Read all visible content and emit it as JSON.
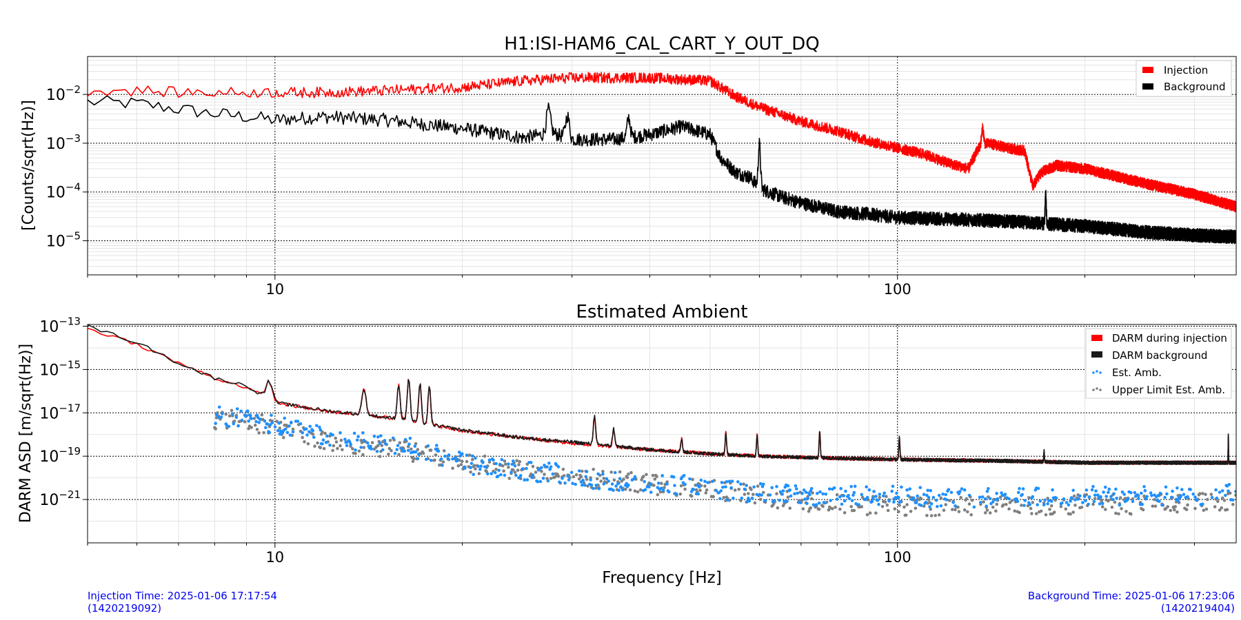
{
  "charts": [
    {
      "title": "H1:ISI-HAM6_CAL_CART_Y_OUT_DQ",
      "ylabel": "[Counts/sqrt(Hz)]",
      "xlabel": "",
      "x_tick_labels": [
        "10",
        "100"
      ],
      "y_tick_labels": [
        {
          "base": "10",
          "exp": "−2"
        },
        {
          "base": "10",
          "exp": "−3"
        },
        {
          "base": "10",
          "exp": "−4"
        },
        {
          "base": "10",
          "exp": "−5"
        }
      ],
      "legend": [
        {
          "label": "Injection",
          "kind": "patch",
          "color": "#ff0000"
        },
        {
          "label": "Background",
          "kind": "patch",
          "color": "#000000"
        }
      ]
    },
    {
      "title": "Estimated Ambient",
      "ylabel": "DARM ASD [m/sqrt(Hz)]",
      "xlabel": "Frequency [Hz]",
      "x_tick_labels": [
        "10",
        "100"
      ],
      "y_tick_labels": [
        {
          "base": "10",
          "exp": "−13"
        },
        {
          "base": "10",
          "exp": "−15"
        },
        {
          "base": "10",
          "exp": "−17"
        },
        {
          "base": "10",
          "exp": "−19"
        },
        {
          "base": "10",
          "exp": "−21"
        }
      ],
      "legend": [
        {
          "label": "DARM during injection",
          "kind": "patch",
          "color": "#ff0000"
        },
        {
          "label": "DARM background",
          "kind": "patch",
          "color": "#1a1a1a"
        },
        {
          "label": "Est. Amb.",
          "kind": "dots",
          "color": "#1e90ff"
        },
        {
          "label": "Upper Limit Est. Amb.",
          "kind": "dots",
          "color": "#808080"
        }
      ]
    }
  ],
  "footer": {
    "injection_time": "Injection Time: 2025-01-06 17:17:54",
    "injection_gps": "(1420219092)",
    "background_time": "Background Time: 2025-01-06 17:23:06",
    "background_gps": "(1420219404)"
  },
  "chart_data": [
    {
      "type": "line",
      "title": "H1:ISI-HAM6_CAL_CART_Y_OUT_DQ",
      "xlabel": "",
      "ylabel": "[Counts/sqrt(Hz)]",
      "xscale": "log",
      "yscale": "log",
      "xlim": [
        5,
        350
      ],
      "ylim": [
        2e-06,
        0.06
      ],
      "grid": true,
      "legend_position": "top-right",
      "series": [
        {
          "name": "Injection",
          "color": "#ff0000",
          "x": [
            5,
            6,
            7,
            8,
            10,
            12,
            15,
            20,
            25,
            30,
            40,
            50,
            55,
            60,
            70,
            80,
            90,
            100,
            110,
            120,
            130,
            135,
            140,
            150,
            160,
            165,
            170,
            180,
            200,
            250,
            300,
            350
          ],
          "y": [
            0.012,
            0.012,
            0.011,
            0.011,
            0.011,
            0.011,
            0.012,
            0.014,
            0.019,
            0.022,
            0.022,
            0.019,
            0.009,
            0.0055,
            0.0028,
            0.0018,
            0.0011,
            0.0008,
            0.0006,
            0.0004,
            0.0003,
            0.0008,
            0.001,
            0.0008,
            0.0007,
            0.00013,
            0.00025,
            0.00035,
            0.0003,
            0.00015,
            9e-05,
            5e-05
          ]
        },
        {
          "name": "Background",
          "color": "#000000",
          "x": [
            5,
            6,
            7,
            8,
            9,
            10,
            12,
            15,
            20,
            25,
            28,
            30,
            35,
            40,
            45,
            50,
            52,
            55,
            58,
            60,
            65,
            70,
            80,
            90,
            100,
            120,
            150,
            200,
            250,
            300,
            350
          ],
          "y": [
            0.007,
            0.0065,
            0.005,
            0.004,
            0.0035,
            0.003,
            0.0035,
            0.003,
            0.002,
            0.0013,
            0.0016,
            0.0012,
            0.0012,
            0.0015,
            0.0022,
            0.0015,
            0.0005,
            0.00025,
            0.0002,
            0.00012,
            8e-05,
            6e-05,
            4e-05,
            3.5e-05,
            3e-05,
            2.8e-05,
            2.5e-05,
            2e-05,
            1.5e-05,
            1.3e-05,
            1.2e-05
          ]
        }
      ]
    },
    {
      "type": "line",
      "title": "Estimated Ambient",
      "xlabel": "Frequency [Hz]",
      "ylabel": "DARM ASD [m/sqrt(Hz)]",
      "xscale": "log",
      "yscale": "log",
      "xlim": [
        5,
        350
      ],
      "ylim": [
        1e-23,
        1.2e-13
      ],
      "grid": true,
      "legend_position": "top-right",
      "series": [
        {
          "name": "DARM during injection",
          "color": "#ff0000",
          "x": [
            5,
            6,
            7,
            8,
            9,
            10,
            12,
            14,
            16,
            20,
            25,
            30,
            40,
            50,
            60,
            80,
            100,
            150,
            200,
            300,
            350
          ],
          "y": [
            8e-14,
            1.5e-14,
            2e-15,
            4e-16,
            1.5e-16,
            3e-17,
            1.2e-17,
            8e-18,
            5e-18,
            1.5e-18,
            7e-19,
            4e-19,
            2e-19,
            1.3e-19,
            1e-19,
            8e-20,
            7e-20,
            6e-20,
            5e-20,
            5e-20,
            5e-20
          ]
        },
        {
          "name": "DARM background",
          "color": "#1a1a1a",
          "x": [
            5,
            6,
            7,
            8,
            9,
            10,
            12,
            14,
            16,
            20,
            25,
            30,
            40,
            50,
            60,
            80,
            100,
            150,
            200,
            300,
            350
          ],
          "y": [
            1e-13,
            1.8e-14,
            2e-15,
            4e-16,
            1.8e-16,
            3e-17,
            1.3e-17,
            8e-18,
            5e-18,
            1.6e-18,
            7e-19,
            4.5e-19,
            2e-19,
            1.3e-19,
            1e-19,
            8e-20,
            7e-20,
            6e-20,
            5e-20,
            5e-20,
            5e-20
          ]
        },
        {
          "name": "Est. Amb.",
          "color": "#1e90ff",
          "kind": "scatter",
          "x": [
            8,
            10,
            13,
            16,
            17,
            20,
            22,
            25,
            30,
            33,
            40,
            45,
            50,
            60,
            70,
            80,
            100,
            120,
            150,
            200,
            250,
            300,
            350
          ],
          "y": [
            8e-18,
            3e-18,
            5e-19,
            3e-19,
            2e-19,
            5e-20,
            3e-20,
            2e-20,
            1.5e-20,
            7e-21,
            5e-21,
            5e-21,
            3e-21,
            2e-21,
            1.5e-21,
            1.5e-21,
            1.5e-21,
            1.2e-21,
            1.2e-21,
            1.5e-21,
            1.5e-21,
            1.5e-21,
            2e-21
          ]
        },
        {
          "name": "Upper Limit Est. Amb.",
          "color": "#808080",
          "kind": "scatter",
          "x": [
            9,
            10,
            12,
            14,
            16,
            18,
            20,
            25,
            30,
            35,
            40,
            50,
            60,
            70,
            80,
            100,
            120,
            150,
            200,
            250,
            300,
            350
          ],
          "y": [
            5e-18,
            2e-18,
            5e-19,
            3e-19,
            2e-19,
            1e-19,
            6e-20,
            2e-20,
            1e-20,
            8e-21,
            5e-21,
            3e-21,
            1.5e-21,
            8e-22,
            6e-22,
            5e-22,
            5e-22,
            5e-22,
            6e-22,
            6e-22,
            7e-22,
            8e-22
          ]
        }
      ]
    }
  ]
}
